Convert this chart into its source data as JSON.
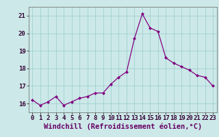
{
  "x": [
    0,
    1,
    2,
    3,
    4,
    5,
    6,
    7,
    8,
    9,
    10,
    11,
    12,
    13,
    14,
    15,
    16,
    17,
    18,
    19,
    20,
    21,
    22,
    23
  ],
  "y": [
    16.2,
    15.9,
    16.1,
    16.4,
    15.9,
    16.1,
    16.3,
    16.4,
    16.6,
    16.6,
    17.1,
    17.5,
    17.8,
    19.7,
    21.1,
    20.3,
    20.1,
    18.6,
    18.3,
    18.1,
    17.9,
    17.6,
    17.5,
    17.0
  ],
  "xlabel": "Windchill (Refroidissement éolien,°C)",
  "xlim": [
    -0.5,
    23.5
  ],
  "ylim": [
    15.5,
    21.5
  ],
  "yticks": [
    16,
    17,
    18,
    19,
    20,
    21
  ],
  "xticks": [
    0,
    1,
    2,
    3,
    4,
    5,
    6,
    7,
    8,
    9,
    10,
    11,
    12,
    13,
    14,
    15,
    16,
    17,
    18,
    19,
    20,
    21,
    22,
    23
  ],
  "line_color": "#800080",
  "marker": "D",
  "marker_size": 2.0,
  "bg_color": "#cce8e8",
  "grid_color": "#99cccc",
  "xlabel_fontsize": 7.5,
  "tick_fontsize": 6.5,
  "line_width": 0.9
}
